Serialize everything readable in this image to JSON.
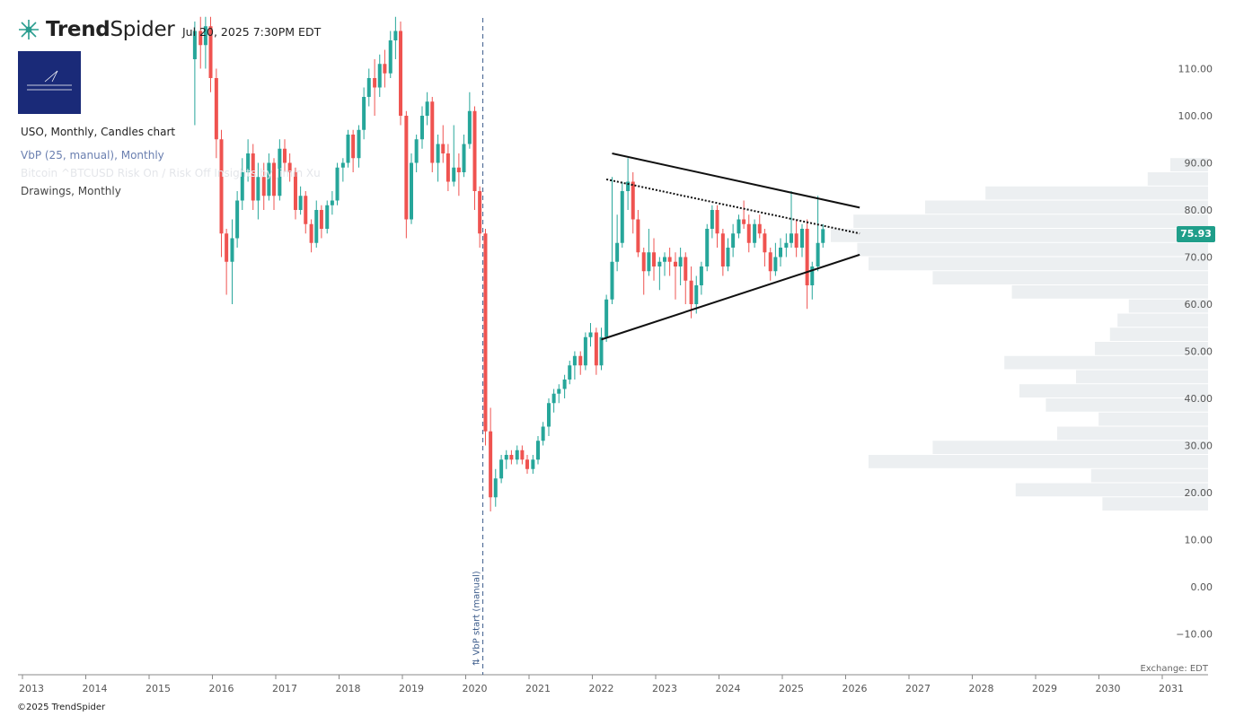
{
  "header": {
    "brand_bold": "Trend",
    "brand_light": "Spider",
    "datetime": "Jul 20, 2025 7:30PM EDT"
  },
  "legend": {
    "chart": "USO, Monthly, Candles chart",
    "vbp": "VbP (25, manual), Monthly",
    "overlay": "Bitcoin ^BTCUSD Risk On / Risk Off Insights by Jimin Xu",
    "drawings": "Drawings, Monthly"
  },
  "footer": {
    "exchange": "Exchange: EDT",
    "copyright": "©2025 TrendSpider"
  },
  "colors": {
    "up": "#26a69a",
    "down": "#ef5350",
    "vbp": "#eceff1",
    "tag": "#1f9e8a",
    "logo": "#1a2a78"
  },
  "chart_data": {
    "type": "candlestick",
    "symbol": "USO",
    "interval": "Monthly",
    "x_ticks": [
      "2013",
      "2014",
      "2015",
      "2016",
      "2017",
      "2018",
      "2019",
      "2020",
      "2021",
      "2022",
      "2023",
      "2024",
      "2025",
      "2026",
      "2027",
      "2028",
      "2029",
      "2030",
      "2031"
    ],
    "y_ticks": [
      "110.00",
      "100.00",
      "90.00",
      "80.00",
      "70.00",
      "60.00",
      "50.00",
      "40.00",
      "30.00",
      "20.00",
      "10.00",
      "0.00",
      "−10.00"
    ],
    "ylim": [
      -12,
      118
    ],
    "last_price": "75.93",
    "vbp_marker_label": "VbP start (manual)",
    "vbp_marker_date": 2020.2,
    "candles": [
      {
        "t": 2015.58,
        "o": 112,
        "h": 120,
        "l": 98,
        "c": 118
      },
      {
        "t": 2015.67,
        "o": 118,
        "h": 121,
        "l": 110,
        "c": 115
      },
      {
        "t": 2015.75,
        "o": 115,
        "h": 121,
        "l": 110,
        "c": 119
      },
      {
        "t": 2015.83,
        "o": 119,
        "h": 121,
        "l": 105,
        "c": 108
      },
      {
        "t": 2015.92,
        "o": 108,
        "h": 110,
        "l": 91,
        "c": 95
      },
      {
        "t": 2016.0,
        "o": 95,
        "h": 97,
        "l": 70,
        "c": 75
      },
      {
        "t": 2016.08,
        "o": 75,
        "h": 76,
        "l": 62,
        "c": 69
      },
      {
        "t": 2016.17,
        "o": 69,
        "h": 78,
        "l": 60,
        "c": 74
      },
      {
        "t": 2016.25,
        "o": 74,
        "h": 84,
        "l": 72,
        "c": 82
      },
      {
        "t": 2016.33,
        "o": 82,
        "h": 91,
        "l": 80,
        "c": 88
      },
      {
        "t": 2016.42,
        "o": 88,
        "h": 95,
        "l": 86,
        "c": 92
      },
      {
        "t": 2016.5,
        "o": 92,
        "h": 94,
        "l": 80,
        "c": 82
      },
      {
        "t": 2016.58,
        "o": 82,
        "h": 90,
        "l": 78,
        "c": 87
      },
      {
        "t": 2016.67,
        "o": 87,
        "h": 90,
        "l": 80,
        "c": 83
      },
      {
        "t": 2016.75,
        "o": 83,
        "h": 92,
        "l": 82,
        "c": 90
      },
      {
        "t": 2016.83,
        "o": 90,
        "h": 91,
        "l": 80,
        "c": 83
      },
      {
        "t": 2016.92,
        "o": 83,
        "h": 95,
        "l": 82,
        "c": 93
      },
      {
        "t": 2017.0,
        "o": 93,
        "h": 95,
        "l": 88,
        "c": 90
      },
      {
        "t": 2017.08,
        "o": 90,
        "h": 92,
        "l": 86,
        "c": 88
      },
      {
        "t": 2017.17,
        "o": 88,
        "h": 89,
        "l": 78,
        "c": 80
      },
      {
        "t": 2017.25,
        "o": 80,
        "h": 85,
        "l": 79,
        "c": 83
      },
      {
        "t": 2017.33,
        "o": 83,
        "h": 84,
        "l": 75,
        "c": 77
      },
      {
        "t": 2017.42,
        "o": 77,
        "h": 78,
        "l": 71,
        "c": 73
      },
      {
        "t": 2017.5,
        "o": 73,
        "h": 82,
        "l": 72,
        "c": 80
      },
      {
        "t": 2017.58,
        "o": 80,
        "h": 81,
        "l": 74,
        "c": 76
      },
      {
        "t": 2017.67,
        "o": 76,
        "h": 82,
        "l": 75,
        "c": 81
      },
      {
        "t": 2017.75,
        "o": 81,
        "h": 84,
        "l": 79,
        "c": 82
      },
      {
        "t": 2017.83,
        "o": 82,
        "h": 90,
        "l": 81,
        "c": 89
      },
      {
        "t": 2017.92,
        "o": 89,
        "h": 91,
        "l": 86,
        "c": 90
      },
      {
        "t": 2018.0,
        "o": 90,
        "h": 97,
        "l": 89,
        "c": 96
      },
      {
        "t": 2018.08,
        "o": 96,
        "h": 97,
        "l": 88,
        "c": 91
      },
      {
        "t": 2018.17,
        "o": 91,
        "h": 98,
        "l": 89,
        "c": 97
      },
      {
        "t": 2018.25,
        "o": 97,
        "h": 106,
        "l": 95,
        "c": 104
      },
      {
        "t": 2018.33,
        "o": 104,
        "h": 110,
        "l": 102,
        "c": 108
      },
      {
        "t": 2018.42,
        "o": 108,
        "h": 112,
        "l": 100,
        "c": 106
      },
      {
        "t": 2018.5,
        "o": 106,
        "h": 113,
        "l": 104,
        "c": 111
      },
      {
        "t": 2018.58,
        "o": 111,
        "h": 114,
        "l": 106,
        "c": 109
      },
      {
        "t": 2018.67,
        "o": 109,
        "h": 118,
        "l": 108,
        "c": 116
      },
      {
        "t": 2018.75,
        "o": 116,
        "h": 121,
        "l": 112,
        "c": 118
      },
      {
        "t": 2018.83,
        "o": 118,
        "h": 120,
        "l": 98,
        "c": 100
      },
      {
        "t": 2018.92,
        "o": 100,
        "h": 101,
        "l": 74,
        "c": 78
      },
      {
        "t": 2019.0,
        "o": 78,
        "h": 92,
        "l": 77,
        "c": 90
      },
      {
        "t": 2019.08,
        "o": 90,
        "h": 96,
        "l": 88,
        "c": 95
      },
      {
        "t": 2019.17,
        "o": 95,
        "h": 102,
        "l": 93,
        "c": 100
      },
      {
        "t": 2019.25,
        "o": 100,
        "h": 105,
        "l": 98,
        "c": 103
      },
      {
        "t": 2019.33,
        "o": 103,
        "h": 104,
        "l": 88,
        "c": 90
      },
      {
        "t": 2019.42,
        "o": 90,
        "h": 96,
        "l": 86,
        "c": 94
      },
      {
        "t": 2019.5,
        "o": 94,
        "h": 98,
        "l": 90,
        "c": 92
      },
      {
        "t": 2019.58,
        "o": 92,
        "h": 94,
        "l": 84,
        "c": 86
      },
      {
        "t": 2019.67,
        "o": 86,
        "h": 98,
        "l": 85,
        "c": 89
      },
      {
        "t": 2019.75,
        "o": 89,
        "h": 92,
        "l": 83,
        "c": 88
      },
      {
        "t": 2019.83,
        "o": 88,
        "h": 96,
        "l": 87,
        "c": 94
      },
      {
        "t": 2019.92,
        "o": 94,
        "h": 105,
        "l": 93,
        "c": 101
      },
      {
        "t": 2020.0,
        "o": 101,
        "h": 102,
        "l": 80,
        "c": 84
      },
      {
        "t": 2020.08,
        "o": 84,
        "h": 85,
        "l": 72,
        "c": 75
      },
      {
        "t": 2020.17,
        "o": 75,
        "h": 76,
        "l": 30,
        "c": 33
      },
      {
        "t": 2020.25,
        "o": 33,
        "h": 38,
        "l": 16,
        "c": 19
      },
      {
        "t": 2020.33,
        "o": 19,
        "h": 25,
        "l": 17,
        "c": 23
      },
      {
        "t": 2020.42,
        "o": 23,
        "h": 28,
        "l": 22,
        "c": 27
      },
      {
        "t": 2020.5,
        "o": 27,
        "h": 29,
        "l": 25,
        "c": 28
      },
      {
        "t": 2020.58,
        "o": 28,
        "h": 29,
        "l": 26,
        "c": 27
      },
      {
        "t": 2020.67,
        "o": 27,
        "h": 30,
        "l": 26,
        "c": 29
      },
      {
        "t": 2020.75,
        "o": 29,
        "h": 30,
        "l": 26,
        "c": 27
      },
      {
        "t": 2020.83,
        "o": 27,
        "h": 28,
        "l": 24,
        "c": 25
      },
      {
        "t": 2020.92,
        "o": 25,
        "h": 28,
        "l": 24,
        "c": 27
      },
      {
        "t": 2021.0,
        "o": 27,
        "h": 32,
        "l": 26,
        "c": 31
      },
      {
        "t": 2021.08,
        "o": 31,
        "h": 35,
        "l": 30,
        "c": 34
      },
      {
        "t": 2021.17,
        "o": 34,
        "h": 40,
        "l": 32,
        "c": 39
      },
      {
        "t": 2021.25,
        "o": 39,
        "h": 42,
        "l": 37,
        "c": 41
      },
      {
        "t": 2021.33,
        "o": 41,
        "h": 43,
        "l": 39,
        "c": 42
      },
      {
        "t": 2021.42,
        "o": 42,
        "h": 45,
        "l": 40,
        "c": 44
      },
      {
        "t": 2021.5,
        "o": 44,
        "h": 48,
        "l": 43,
        "c": 47
      },
      {
        "t": 2021.58,
        "o": 47,
        "h": 50,
        "l": 44,
        "c": 49
      },
      {
        "t": 2021.67,
        "o": 49,
        "h": 50,
        "l": 45,
        "c": 47
      },
      {
        "t": 2021.75,
        "o": 47,
        "h": 54,
        "l": 46,
        "c": 53
      },
      {
        "t": 2021.83,
        "o": 53,
        "h": 56,
        "l": 51,
        "c": 54
      },
      {
        "t": 2021.92,
        "o": 54,
        "h": 55,
        "l": 45,
        "c": 47
      },
      {
        "t": 2022.0,
        "o": 47,
        "h": 55,
        "l": 46,
        "c": 53
      },
      {
        "t": 2022.08,
        "o": 53,
        "h": 62,
        "l": 52,
        "c": 61
      },
      {
        "t": 2022.17,
        "o": 61,
        "h": 87,
        "l": 60,
        "c": 69
      },
      {
        "t": 2022.25,
        "o": 69,
        "h": 79,
        "l": 67,
        "c": 73
      },
      {
        "t": 2022.33,
        "o": 73,
        "h": 86,
        "l": 72,
        "c": 84
      },
      {
        "t": 2022.42,
        "o": 84,
        "h": 91,
        "l": 80,
        "c": 86
      },
      {
        "t": 2022.5,
        "o": 86,
        "h": 88,
        "l": 75,
        "c": 78
      },
      {
        "t": 2022.58,
        "o": 78,
        "h": 80,
        "l": 70,
        "c": 71
      },
      {
        "t": 2022.67,
        "o": 71,
        "h": 72,
        "l": 62,
        "c": 67
      },
      {
        "t": 2022.75,
        "o": 67,
        "h": 76,
        "l": 66,
        "c": 71
      },
      {
        "t": 2022.83,
        "o": 71,
        "h": 74,
        "l": 65,
        "c": 68
      },
      {
        "t": 2022.92,
        "o": 68,
        "h": 70,
        "l": 63,
        "c": 69
      },
      {
        "t": 2023.0,
        "o": 69,
        "h": 71,
        "l": 66,
        "c": 70
      },
      {
        "t": 2023.08,
        "o": 70,
        "h": 72,
        "l": 66,
        "c": 69
      },
      {
        "t": 2023.17,
        "o": 69,
        "h": 71,
        "l": 61,
        "c": 68
      },
      {
        "t": 2023.25,
        "o": 68,
        "h": 72,
        "l": 64,
        "c": 70
      },
      {
        "t": 2023.33,
        "o": 70,
        "h": 71,
        "l": 60,
        "c": 65
      },
      {
        "t": 2023.42,
        "o": 65,
        "h": 68,
        "l": 57,
        "c": 60
      },
      {
        "t": 2023.5,
        "o": 60,
        "h": 66,
        "l": 58,
        "c": 64
      },
      {
        "t": 2023.58,
        "o": 64,
        "h": 69,
        "l": 62,
        "c": 68
      },
      {
        "t": 2023.67,
        "o": 68,
        "h": 77,
        "l": 67,
        "c": 76
      },
      {
        "t": 2023.75,
        "o": 76,
        "h": 81,
        "l": 74,
        "c": 80
      },
      {
        "t": 2023.83,
        "o": 80,
        "h": 81,
        "l": 72,
        "c": 75
      },
      {
        "t": 2023.92,
        "o": 75,
        "h": 76,
        "l": 66,
        "c": 68
      },
      {
        "t": 2024.0,
        "o": 68,
        "h": 74,
        "l": 67,
        "c": 72
      },
      {
        "t": 2024.08,
        "o": 72,
        "h": 77,
        "l": 70,
        "c": 75
      },
      {
        "t": 2024.17,
        "o": 75,
        "h": 79,
        "l": 74,
        "c": 78
      },
      {
        "t": 2024.25,
        "o": 78,
        "h": 82,
        "l": 76,
        "c": 77
      },
      {
        "t": 2024.33,
        "o": 77,
        "h": 79,
        "l": 71,
        "c": 73
      },
      {
        "t": 2024.42,
        "o": 73,
        "h": 78,
        "l": 72,
        "c": 77
      },
      {
        "t": 2024.5,
        "o": 77,
        "h": 79,
        "l": 74,
        "c": 75
      },
      {
        "t": 2024.58,
        "o": 75,
        "h": 76,
        "l": 68,
        "c": 71
      },
      {
        "t": 2024.67,
        "o": 71,
        "h": 72,
        "l": 65,
        "c": 67
      },
      {
        "t": 2024.75,
        "o": 67,
        "h": 73,
        "l": 66,
        "c": 70
      },
      {
        "t": 2024.83,
        "o": 70,
        "h": 74,
        "l": 68,
        "c": 72
      },
      {
        "t": 2024.92,
        "o": 72,
        "h": 75,
        "l": 70,
        "c": 73
      },
      {
        "t": 2025.0,
        "o": 73,
        "h": 84,
        "l": 72,
        "c": 75
      },
      {
        "t": 2025.08,
        "o": 75,
        "h": 78,
        "l": 70,
        "c": 72
      },
      {
        "t": 2025.17,
        "o": 72,
        "h": 77,
        "l": 70,
        "c": 76
      },
      {
        "t": 2025.25,
        "o": 76,
        "h": 78,
        "l": 59,
        "c": 64
      },
      {
        "t": 2025.33,
        "o": 64,
        "h": 69,
        "l": 61,
        "c": 68
      },
      {
        "t": 2025.42,
        "o": 68,
        "h": 83,
        "l": 67,
        "c": 73
      },
      {
        "t": 2025.5,
        "o": 73,
        "h": 77,
        "l": 72,
        "c": 75.93
      }
    ],
    "trendlines": [
      {
        "style": "solid",
        "from": [
          2022.17,
          92
        ],
        "to": [
          2026.08,
          80.5
        ]
      },
      {
        "style": "dotted",
        "from": [
          2022.08,
          86.5
        ],
        "to": [
          2026.08,
          75
        ]
      },
      {
        "style": "solid",
        "from": [
          2022.0,
          52.5
        ],
        "to": [
          2026.08,
          70.5
        ]
      }
    ],
    "volume_profile": [
      {
        "lo": 88,
        "hi": 91,
        "rel": 0.1
      },
      {
        "lo": 85,
        "hi": 88,
        "rel": 0.16
      },
      {
        "lo": 82,
        "hi": 85,
        "rel": 0.59
      },
      {
        "lo": 79,
        "hi": 82,
        "rel": 0.75
      },
      {
        "lo": 76,
        "hi": 79,
        "rel": 0.94
      },
      {
        "lo": 73,
        "hi": 76,
        "rel": 1.0
      },
      {
        "lo": 70,
        "hi": 73,
        "rel": 0.93
      },
      {
        "lo": 67,
        "hi": 70,
        "rel": 0.9
      },
      {
        "lo": 64,
        "hi": 67,
        "rel": 0.73
      },
      {
        "lo": 61,
        "hi": 64,
        "rel": 0.52
      },
      {
        "lo": 58,
        "hi": 61,
        "rel": 0.21
      },
      {
        "lo": 55,
        "hi": 58,
        "rel": 0.24
      },
      {
        "lo": 52,
        "hi": 55,
        "rel": 0.26
      },
      {
        "lo": 49,
        "hi": 52,
        "rel": 0.3
      },
      {
        "lo": 46,
        "hi": 49,
        "rel": 0.54
      },
      {
        "lo": 43,
        "hi": 46,
        "rel": 0.35
      },
      {
        "lo": 40,
        "hi": 43,
        "rel": 0.5
      },
      {
        "lo": 37,
        "hi": 40,
        "rel": 0.43
      },
      {
        "lo": 34,
        "hi": 37,
        "rel": 0.29
      },
      {
        "lo": 31,
        "hi": 34,
        "rel": 0.4
      },
      {
        "lo": 28,
        "hi": 31,
        "rel": 0.73
      },
      {
        "lo": 25,
        "hi": 28,
        "rel": 0.9
      },
      {
        "lo": 22,
        "hi": 25,
        "rel": 0.31
      },
      {
        "lo": 19,
        "hi": 22,
        "rel": 0.51
      },
      {
        "lo": 16,
        "hi": 19,
        "rel": 0.28
      }
    ]
  }
}
